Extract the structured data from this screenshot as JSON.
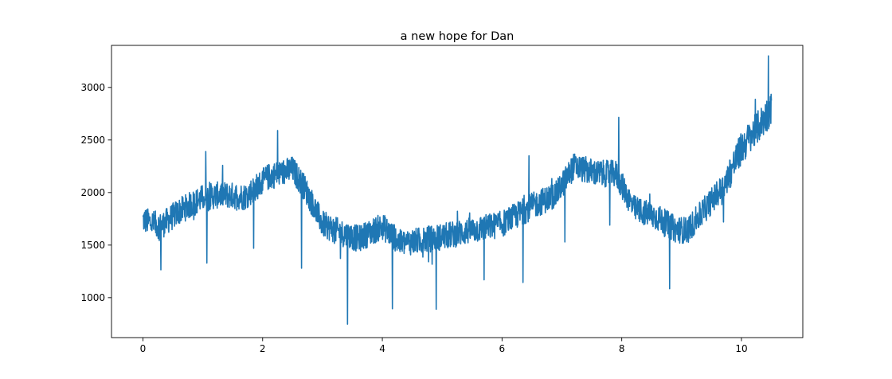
{
  "chart_data": {
    "type": "line",
    "title": "a new hope for Dan",
    "xlabel": "",
    "ylabel": "",
    "xlim": [
      -0.525,
      11.025
    ],
    "ylim": [
      620,
      3400
    ],
    "xticks": [
      0,
      2,
      4,
      6,
      8,
      10
    ],
    "xtick_labels": [
      "0",
      "2",
      "4",
      "6",
      "8",
      "10"
    ],
    "yticks": [
      1000,
      1500,
      2000,
      2500,
      3000
    ],
    "ytick_labels": [
      "1000",
      "1500",
      "2000",
      "2500",
      "3000"
    ],
    "grid": false,
    "legend": false,
    "series": [
      {
        "name": "series",
        "color": "#1f77b4",
        "noise_amplitude": 170,
        "samples_per_unit": 220,
        "trend": {
          "x": [
            0,
            0.3,
            0.6,
            1.0,
            1.3,
            1.7,
            2.1,
            2.5,
            2.7,
            3.0,
            3.3,
            3.6,
            4.0,
            4.3,
            4.6,
            5.0,
            5.5,
            6.0,
            6.5,
            6.9,
            7.2,
            7.6,
            7.9,
            8.2,
            8.6,
            8.9,
            9.1,
            9.4,
            9.7,
            10.0,
            10.3,
            10.5
          ],
          "y": [
            1740,
            1680,
            1820,
            1950,
            1980,
            1960,
            2150,
            2220,
            2050,
            1700,
            1620,
            1560,
            1680,
            1520,
            1540,
            1580,
            1640,
            1700,
            1870,
            1980,
            2250,
            2180,
            2180,
            1850,
            1760,
            1650,
            1640,
            1850,
            2060,
            2420,
            2640,
            2800
          ]
        },
        "dips": [
          {
            "x": 0.3,
            "y": 1265
          },
          {
            "x": 1.07,
            "y": 1330
          },
          {
            "x": 1.85,
            "y": 1470
          },
          {
            "x": 2.65,
            "y": 1280
          },
          {
            "x": 3.42,
            "y": 748
          },
          {
            "x": 4.17,
            "y": 895
          },
          {
            "x": 4.9,
            "y": 890
          },
          {
            "x": 5.7,
            "y": 1170
          },
          {
            "x": 6.35,
            "y": 1145
          },
          {
            "x": 7.05,
            "y": 1530
          },
          {
            "x": 7.8,
            "y": 1690
          },
          {
            "x": 8.8,
            "y": 1085
          },
          {
            "x": 9.7,
            "y": 1720
          }
        ],
        "peaks": [
          {
            "x": 1.05,
            "y": 2390
          },
          {
            "x": 2.25,
            "y": 2590
          },
          {
            "x": 6.45,
            "y": 2350
          },
          {
            "x": 7.95,
            "y": 2715
          },
          {
            "x": 10.45,
            "y": 3300
          }
        ]
      }
    ]
  }
}
